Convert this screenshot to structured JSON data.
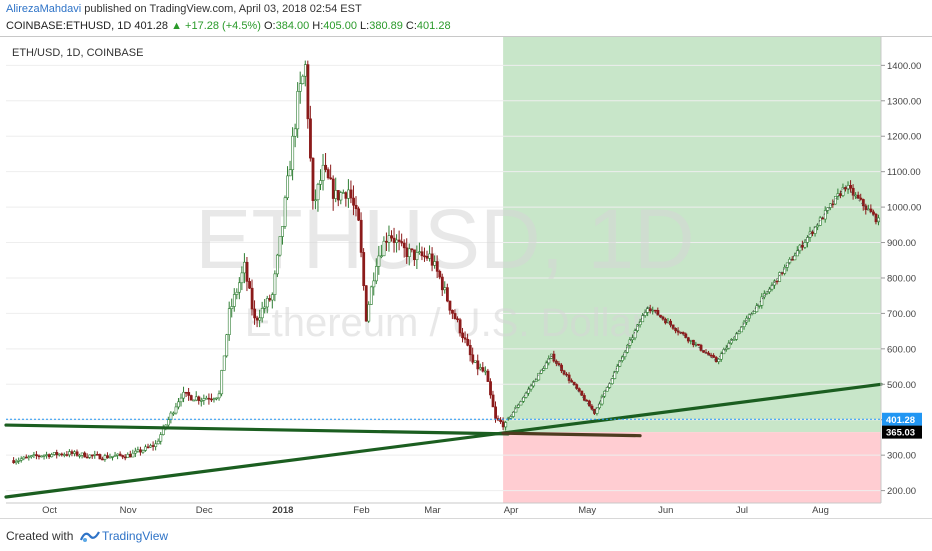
{
  "header": {
    "author": "AlirezaMahdavi",
    "published_text": "published on TradingView.com, April 03, 2018 02:54 EST",
    "symbol_line": "COINBASE:ETHUSD, 1D",
    "last": "401.28",
    "change": "+17.28 (+4.5%)",
    "o_label": "O:",
    "o": "384.00",
    "h_label": "H:",
    "h": "405.00",
    "l_label": "L:",
    "l": "380.89",
    "c_label": "C:",
    "c": "401.28",
    "up_arrow": "▲"
  },
  "footer": {
    "created_with": "Created with",
    "brand": "TradingView"
  },
  "chart_data": {
    "type": "candlestick",
    "title": "ETH/USD, 1D, COINBASE",
    "watermark_symbol": "ETHUSD, 1D",
    "watermark_name": "Ethereum / U.S. Dollar",
    "y_ticks": [
      200,
      300,
      400,
      500,
      600,
      700,
      800,
      900,
      1000,
      1100,
      1200,
      1300,
      1400
    ],
    "ylim": [
      165,
      1480
    ],
    "x_ticks": [
      "Oct",
      "Nov",
      "Dec",
      "2018",
      "Feb",
      "Mar",
      "Apr",
      "May",
      "Jun",
      "Jul",
      "Aug"
    ],
    "price_labels": [
      {
        "value": 401.28,
        "text": "401.28",
        "color": "#2196f3"
      },
      {
        "value": 365.03,
        "text": "365.03",
        "color": "#000000"
      }
    ],
    "colors": {
      "up": "#2e7d32",
      "down": "#8b1a1a",
      "trend": "#1b5e20",
      "profit_zone": "#c8e6c9",
      "loss_zone": "#ffcdd2"
    },
    "historical_anchors": [
      [
        "2017-09-20",
        285
      ],
      [
        "2017-10-01",
        300
      ],
      [
        "2017-10-12",
        305
      ],
      [
        "2017-10-25",
        295
      ],
      [
        "2017-11-05",
        300
      ],
      [
        "2017-11-15",
        330
      ],
      [
        "2017-11-25",
        470
      ],
      [
        "2017-12-03",
        460
      ],
      [
        "2017-12-10",
        470
      ],
      [
        "2017-12-14",
        700
      ],
      [
        "2017-12-20",
        830
      ],
      [
        "2017-12-24",
        680
      ],
      [
        "2017-12-31",
        750
      ],
      [
        "2018-01-04",
        950
      ],
      [
        "2018-01-10",
        1300
      ],
      [
        "2018-01-13",
        1395
      ],
      [
        "2018-01-16",
        1000
      ],
      [
        "2018-01-20",
        1100
      ],
      [
        "2018-01-25",
        1030
      ],
      [
        "2018-01-30",
        1050
      ],
      [
        "2018-02-03",
        950
      ],
      [
        "2018-02-06",
        690
      ],
      [
        "2018-02-10",
        850
      ],
      [
        "2018-02-15",
        930
      ],
      [
        "2018-02-20",
        880
      ],
      [
        "2018-02-26",
        860
      ],
      [
        "2018-03-03",
        860
      ],
      [
        "2018-03-07",
        800
      ],
      [
        "2018-03-11",
        720
      ],
      [
        "2018-03-16",
        640
      ],
      [
        "2018-03-20",
        560
      ],
      [
        "2018-03-25",
        530
      ],
      [
        "2018-03-29",
        400
      ],
      [
        "2018-04-02",
        384
      ]
    ],
    "projection_anchors": [
      [
        "2018-04-03",
        401
      ],
      [
        "2018-04-20",
        580
      ],
      [
        "2018-05-07",
        420
      ],
      [
        "2018-05-28",
        720
      ],
      [
        "2018-06-24",
        565
      ],
      [
        "2018-08-14",
        1060
      ],
      [
        "2018-08-27",
        960
      ]
    ],
    "trendlines": [
      {
        "from": [
          "2017-09-17",
          182
        ],
        "to": [
          "2018-08-28",
          500
        ]
      },
      {
        "from": [
          "2017-09-17",
          385
        ],
        "to": [
          "2018-04-03",
          360
        ]
      },
      {
        "from": [
          "2018-04-01",
          362
        ],
        "to": [
          "2018-05-25",
          355
        ]
      }
    ],
    "zones": [
      {
        "from": "2018-04-01",
        "to": "2018-08-28",
        "low": 365.03,
        "high": 1480,
        "kind": "profit"
      },
      {
        "from": "2018-04-01",
        "to": "2018-08-28",
        "low": 165,
        "high": 365.03,
        "kind": "loss"
      }
    ]
  }
}
